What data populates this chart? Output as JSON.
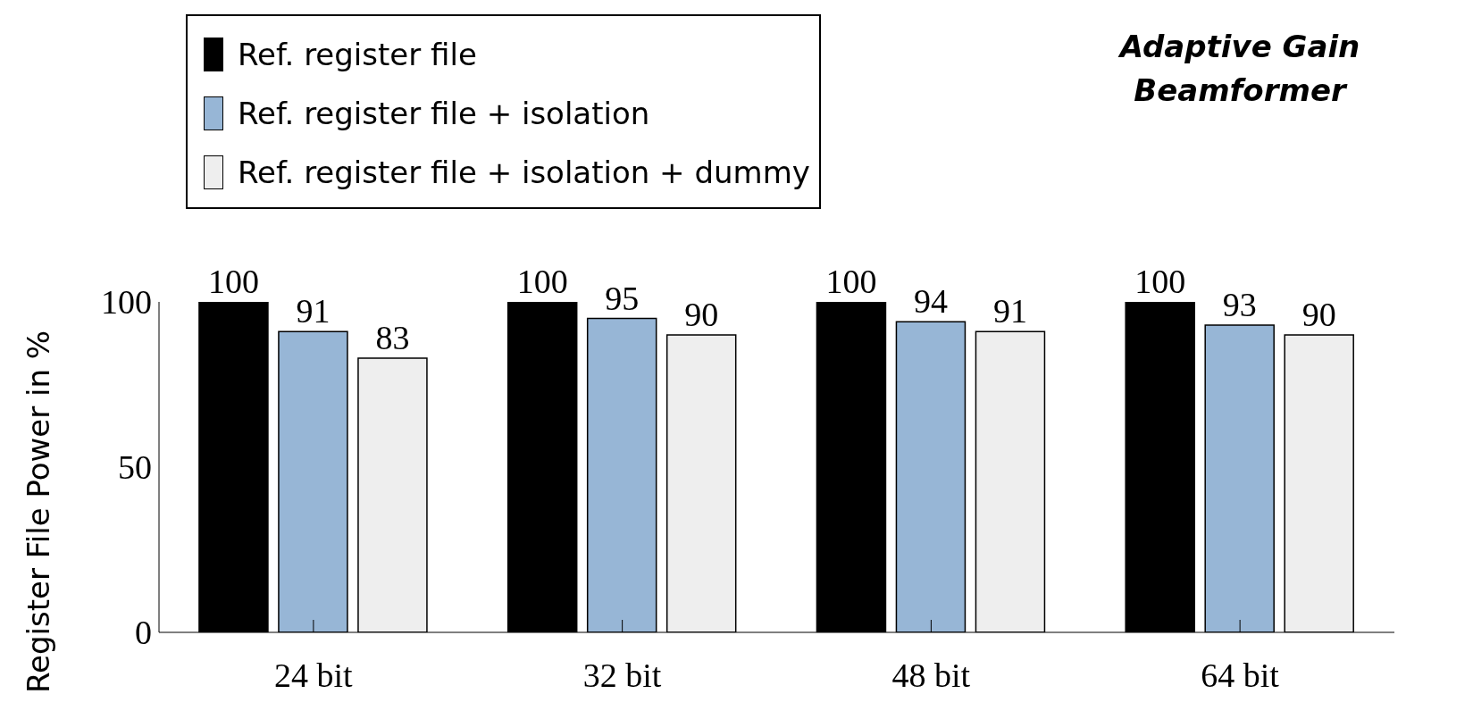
{
  "chart_data": {
    "type": "bar",
    "title": "Adaptive Gain\nBeamformer",
    "ylabel": "Register File Power in %",
    "categories": [
      "24 bit",
      "32 bit",
      "48 bit",
      "64 bit"
    ],
    "series": [
      {
        "name": "Ref. register file",
        "color": "#000000",
        "values": [
          100,
          100,
          100,
          100
        ]
      },
      {
        "name": "Ref. register file + isolation",
        "color": "#97b6d6",
        "values": [
          91,
          95,
          94,
          93
        ]
      },
      {
        "name": "Ref. register file + isolation + dummy",
        "color": "#eeeeee",
        "values": [
          83,
          90,
          91,
          90
        ]
      }
    ],
    "ylim": [
      0,
      100
    ],
    "yticks": [
      0,
      50,
      100
    ],
    "data_labels": true,
    "legend": "top left"
  }
}
